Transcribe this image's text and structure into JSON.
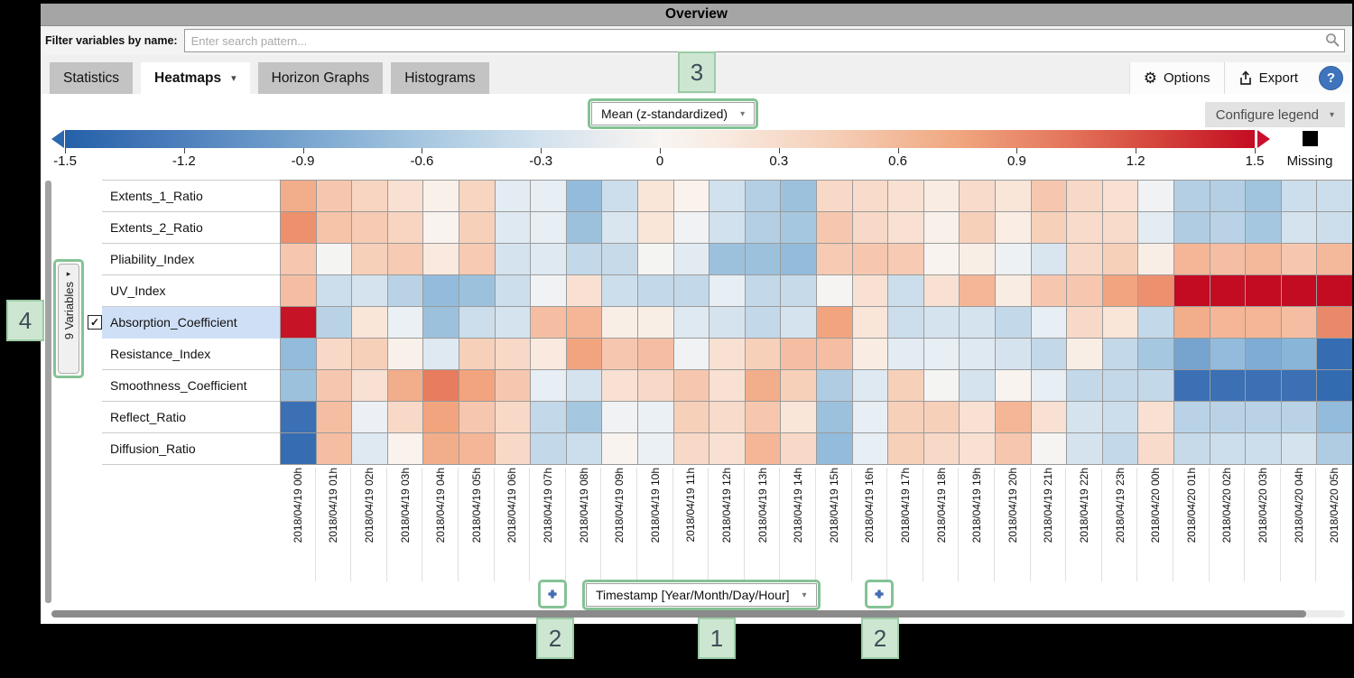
{
  "window": {
    "title": "Overview"
  },
  "filter": {
    "label": "Filter variables by name:",
    "placeholder": "Enter search pattern..."
  },
  "tabs": [
    {
      "label": "Statistics",
      "active": false,
      "has_caret": false
    },
    {
      "label": "Heatmaps",
      "active": true,
      "has_caret": true
    },
    {
      "label": "Horizon Graphs",
      "active": false,
      "has_caret": false
    },
    {
      "label": "Histograms",
      "active": false,
      "has_caret": false
    }
  ],
  "toolbar": {
    "options_label": "Options",
    "export_label": "Export",
    "help_label": "?"
  },
  "aggregation_dropdown": {
    "value": "Mean (z-standardized)"
  },
  "legend": {
    "configure_label": "Configure legend",
    "ticks": [
      "-1.5",
      "-1.2",
      "-0.9",
      "-0.6",
      "-0.3",
      "0",
      "0.3",
      "0.6",
      "0.9",
      "1.2",
      "1.5"
    ],
    "missing_label": "Missing",
    "missing_color": "#000000",
    "min_color": "#2560a9",
    "max_color": "#c40c22"
  },
  "variables_panel": {
    "label": "9 Variables",
    "selected_index": 4,
    "selected_variable": "Absorption_Coefficient",
    "checkbox_checked": true,
    "highlight_color": "#cfe0f6"
  },
  "timestamp_dropdown": {
    "value": "Timestamp [Year/Month/Day/Hour]"
  },
  "callouts": [
    "1",
    "2",
    "2",
    "3",
    "4"
  ],
  "callout_colors": {
    "fill": "#cde6d1",
    "border": "#9bcba6",
    "text": "#3f4d58"
  },
  "highlight_border_color": "#84c294",
  "icons": {
    "caret_down": "▾",
    "caret_right": "▸",
    "gear": "⚙",
    "check": "✓"
  },
  "chart_data": {
    "type": "heatmap",
    "title": "Mean (z-standardized)",
    "value_range": [
      -1.5,
      1.5
    ],
    "rows": [
      "Extents_1_Ratio",
      "Extents_2_Ratio",
      "Pliability_Index",
      "UV_Index",
      "Absorption_Coefficient",
      "Resistance_Index",
      "Smoothness_Coefficient",
      "Reflect_Ratio",
      "Diffusion_Ratio"
    ],
    "columns": [
      "2018/04/19 00h",
      "2018/04/19 01h",
      "2018/04/19 02h",
      "2018/04/19 03h",
      "2018/04/19 04h",
      "2018/04/19 05h",
      "2018/04/19 06h",
      "2018/04/19 07h",
      "2018/04/19 08h",
      "2018/04/19 09h",
      "2018/04/19 10h",
      "2018/04/19 11h",
      "2018/04/19 12h",
      "2018/04/19 13h",
      "2018/04/19 14h",
      "2018/04/19 15h",
      "2018/04/19 16h",
      "2018/04/19 17h",
      "2018/04/19 18h",
      "2018/04/19 19h",
      "2018/04/19 20h",
      "2018/04/19 21h",
      "2018/04/19 22h",
      "2018/04/19 23h",
      "2018/04/20 00h",
      "2018/04/20 01h",
      "2018/04/20 02h",
      "2018/04/20 03h",
      "2018/04/20 04h",
      "2018/04/20 05h"
    ],
    "values": [
      [
        0.45,
        0.3,
        0.22,
        0.15,
        0.05,
        0.22,
        -0.12,
        -0.1,
        -0.55,
        -0.25,
        0.12,
        0.03,
        -0.22,
        -0.38,
        -0.5,
        0.2,
        0.18,
        0.15,
        0.08,
        0.18,
        0.12,
        0.3,
        0.2,
        0.15,
        -0.05,
        -0.38,
        -0.38,
        -0.48,
        -0.25,
        -0.25
      ],
      [
        0.65,
        0.32,
        0.28,
        0.22,
        0.02,
        0.25,
        -0.15,
        -0.1,
        -0.5,
        -0.18,
        0.12,
        -0.05,
        -0.22,
        -0.38,
        -0.45,
        0.3,
        0.2,
        0.15,
        0.05,
        0.25,
        0.07,
        0.25,
        0.18,
        0.18,
        -0.12,
        -0.4,
        -0.35,
        -0.45,
        -0.2,
        -0.25
      ],
      [
        0.3,
        -0.03,
        0.25,
        0.28,
        0.1,
        0.28,
        -0.2,
        -0.15,
        -0.3,
        -0.28,
        -0.03,
        -0.13,
        -0.5,
        -0.5,
        -0.55,
        0.28,
        0.3,
        0.28,
        0.02,
        0.06,
        -0.06,
        -0.18,
        0.2,
        0.25,
        0.06,
        0.4,
        0.35,
        0.38,
        0.3,
        0.38
      ],
      [
        0.35,
        -0.25,
        -0.2,
        -0.35,
        -0.55,
        -0.5,
        -0.25,
        -0.05,
        0.15,
        -0.25,
        -0.3,
        -0.3,
        -0.1,
        -0.3,
        -0.28,
        -0.02,
        0.15,
        -0.25,
        0.15,
        0.4,
        0.08,
        0.3,
        0.3,
        0.5,
        0.65,
        1.5,
        1.5,
        1.5,
        1.5,
        1.5
      ],
      [
        1.45,
        -0.35,
        0.12,
        -0.08,
        -0.5,
        -0.25,
        -0.2,
        0.35,
        0.4,
        0.06,
        0.06,
        -0.15,
        -0.2,
        -0.3,
        -0.2,
        0.5,
        0.12,
        -0.25,
        -0.2,
        -0.2,
        -0.3,
        -0.1,
        0.2,
        0.12,
        -0.3,
        0.45,
        0.4,
        0.4,
        0.35,
        0.7
      ],
      [
        -0.55,
        0.2,
        0.25,
        0.05,
        -0.15,
        0.25,
        0.2,
        0.1,
        0.5,
        0.3,
        0.35,
        -0.05,
        0.15,
        0.25,
        0.35,
        0.35,
        0.08,
        -0.12,
        -0.1,
        -0.15,
        -0.2,
        -0.3,
        0.06,
        -0.3,
        -0.45,
        -0.7,
        -0.55,
        -0.65,
        -0.6,
        -1.1
      ],
      [
        -0.5,
        0.3,
        0.15,
        0.45,
        0.8,
        0.5,
        0.3,
        -0.1,
        -0.2,
        0.15,
        0.2,
        0.3,
        0.15,
        0.45,
        0.25,
        -0.4,
        -0.15,
        0.25,
        -0.03,
        -0.2,
        0.02,
        -0.1,
        -0.3,
        -0.3,
        -0.3,
        -1.0,
        -1.0,
        -1.0,
        -1.0,
        -1.15
      ],
      [
        -1.0,
        0.35,
        -0.07,
        0.2,
        0.5,
        0.3,
        0.2,
        -0.3,
        -0.45,
        -0.05,
        -0.08,
        0.25,
        0.18,
        0.3,
        0.12,
        -0.5,
        -0.1,
        0.25,
        0.25,
        0.15,
        0.4,
        0.15,
        -0.2,
        -0.25,
        0.15,
        -0.35,
        -0.35,
        -0.35,
        -0.35,
        -0.55
      ],
      [
        -1.1,
        0.35,
        -0.15,
        0.03,
        0.45,
        0.4,
        0.2,
        -0.3,
        -0.25,
        0.02,
        -0.08,
        0.2,
        0.15,
        0.4,
        0.2,
        -0.55,
        -0.1,
        0.25,
        0.2,
        0.15,
        0.3,
        -0.02,
        -0.2,
        -0.3,
        0.18,
        -0.28,
        -0.25,
        -0.25,
        -0.2,
        -0.4
      ]
    ],
    "colormap": [
      {
        "v": -1.5,
        "c": "#2160a7"
      },
      {
        "v": -1.0,
        "c": "#3b70b5"
      },
      {
        "v": -0.6,
        "c": "#89b5d8"
      },
      {
        "v": -0.3,
        "c": "#c3d8e8"
      },
      {
        "v": -0.1,
        "c": "#e7eef4"
      },
      {
        "v": 0.0,
        "c": "#f9f6f3"
      },
      {
        "v": 0.1,
        "c": "#f9e9de"
      },
      {
        "v": 0.3,
        "c": "#f6c7ae"
      },
      {
        "v": 0.5,
        "c": "#f1a47e"
      },
      {
        "v": 0.8,
        "c": "#e77c5e"
      },
      {
        "v": 1.1,
        "c": "#d94b3c"
      },
      {
        "v": 1.5,
        "c": "#c30b22"
      }
    ],
    "legend_position": "top",
    "grid": true
  }
}
